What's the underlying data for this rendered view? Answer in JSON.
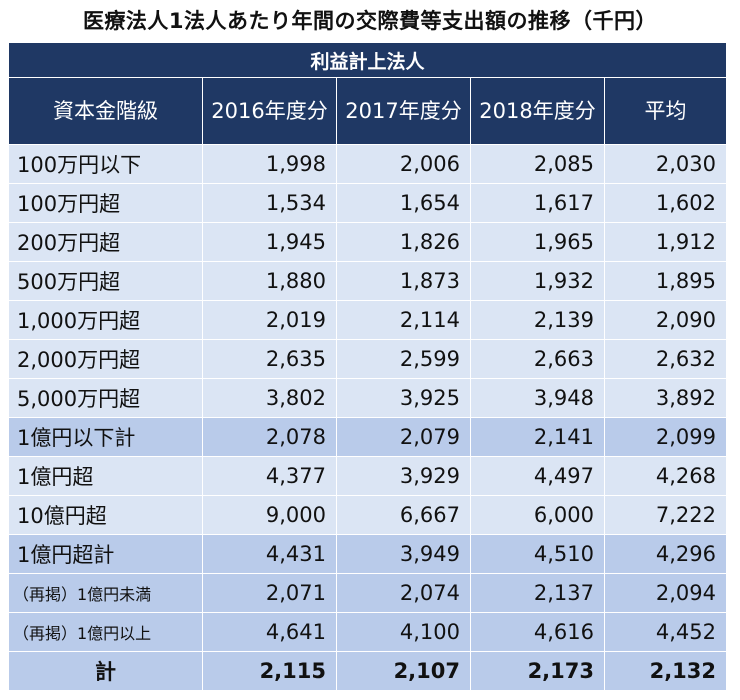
{
  "title": "医療法人1法人あたり年間の交際費等支出額の推移（千円）",
  "band_label": "利益計上法人",
  "headers": [
    "資本金階級",
    "2016年度分",
    "2017年度分",
    "2018年度分",
    "平均"
  ],
  "rows": [
    {
      "label": "100万円以下",
      "values": [
        "1,998",
        "2,006",
        "2,085",
        "2,030"
      ],
      "style": "light"
    },
    {
      "label": "100万円超",
      "values": [
        "1,534",
        "1,654",
        "1,617",
        "1,602"
      ],
      "style": "light"
    },
    {
      "label": "200万円超",
      "values": [
        "1,945",
        "1,826",
        "1,965",
        "1,912"
      ],
      "style": "light"
    },
    {
      "label": "500万円超",
      "values": [
        "1,880",
        "1,873",
        "1,932",
        "1,895"
      ],
      "style": "light"
    },
    {
      "label": "1,000万円超",
      "values": [
        "2,019",
        "2,114",
        "2,139",
        "2,090"
      ],
      "style": "light"
    },
    {
      "label": "2,000万円超",
      "values": [
        "2,635",
        "2,599",
        "2,663",
        "2,632"
      ],
      "style": "light"
    },
    {
      "label": "5,000万円超",
      "values": [
        "3,802",
        "3,925",
        "3,948",
        "3,892"
      ],
      "style": "light"
    },
    {
      "label": "1億円以下計",
      "values": [
        "2,078",
        "2,079",
        "2,141",
        "2,099"
      ],
      "style": "mid"
    },
    {
      "label": "1億円超",
      "values": [
        "4,377",
        "3,929",
        "4,497",
        "4,268"
      ],
      "style": "light"
    },
    {
      "label": "10億円超",
      "values": [
        "9,000",
        "6,667",
        "6,000",
        "7,222"
      ],
      "style": "light"
    },
    {
      "label": "1億円超計",
      "values": [
        "4,431",
        "3,949",
        "4,510",
        "4,296"
      ],
      "style": "mid"
    },
    {
      "label": "（再掲）1億円未満",
      "values": [
        "2,071",
        "2,074",
        "2,137",
        "2,094"
      ],
      "style": "mid small"
    },
    {
      "label": "（再掲）1億円以上",
      "values": [
        "4,641",
        "4,100",
        "4,616",
        "4,452"
      ],
      "style": "mid small"
    },
    {
      "label": "計",
      "values": [
        "2,115",
        "2,107",
        "2,173",
        "2,132"
      ],
      "style": "mid total"
    }
  ]
}
